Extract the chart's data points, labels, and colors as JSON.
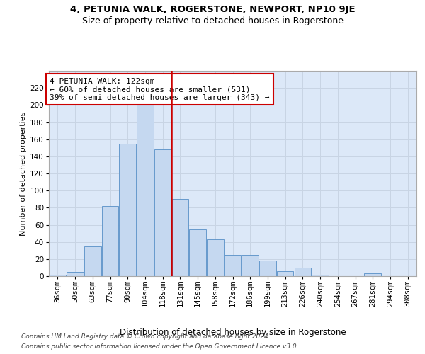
{
  "title": "4, PETUNIA WALK, ROGERSTONE, NEWPORT, NP10 9JE",
  "subtitle": "Size of property relative to detached houses in Rogerstone",
  "xlabel": "Distribution of detached houses by size in Rogerstone",
  "ylabel": "Number of detached properties",
  "categories": [
    "36sqm",
    "50sqm",
    "63sqm",
    "77sqm",
    "90sqm",
    "104sqm",
    "118sqm",
    "131sqm",
    "145sqm",
    "158sqm",
    "172sqm",
    "186sqm",
    "199sqm",
    "213sqm",
    "226sqm",
    "240sqm",
    "254sqm",
    "267sqm",
    "281sqm",
    "294sqm",
    "308sqm"
  ],
  "values": [
    2,
    5,
    35,
    82,
    155,
    200,
    148,
    90,
    55,
    43,
    25,
    25,
    18,
    6,
    10,
    2,
    0,
    0,
    3,
    0,
    0
  ],
  "bar_color": "#c5d8f0",
  "bar_edge_color": "#6699cc",
  "annotation_text": "4 PETUNIA WALK: 122sqm\n← 60% of detached houses are smaller (531)\n39% of semi-detached houses are larger (343) →",
  "annotation_box_facecolor": "#ffffff",
  "annotation_box_edgecolor": "#cc0000",
  "ref_line_color": "#cc0000",
  "ylim": [
    0,
    240
  ],
  "yticks": [
    0,
    20,
    40,
    60,
    80,
    100,
    120,
    140,
    160,
    180,
    200,
    220
  ],
  "grid_color": "#c8d4e4",
  "plot_bg_color": "#dce8f8",
  "fig_bg_color": "#ffffff",
  "footer_line1": "Contains HM Land Registry data © Crown copyright and database right 2024.",
  "footer_line2": "Contains public sector information licensed under the Open Government Licence v3.0.",
  "title_fontsize": 9.5,
  "subtitle_fontsize": 9,
  "ylabel_fontsize": 8,
  "xlabel_fontsize": 8.5,
  "tick_fontsize": 7.5,
  "annot_fontsize": 8,
  "footer_fontsize": 6.5
}
